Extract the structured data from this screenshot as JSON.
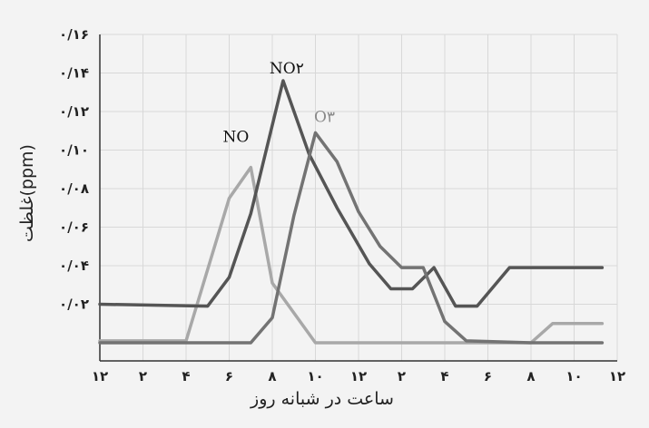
{
  "chart_data": {
    "type": "line",
    "xlabel": "ساعت در شبانه روز",
    "ylabel": "غلظت(ppm)",
    "x_tick_labels": [
      "۱۲",
      "۲",
      "۴",
      "۶",
      "۸",
      "۱۰",
      "۱۲",
      "۲",
      "۴",
      "۶",
      "۸",
      "۱۰",
      "۱۲"
    ],
    "y_tick_labels": [
      "۰/۰۲",
      "۰/۰۴",
      "۰/۰۶",
      "۰/۰۸",
      "۰/۱۰",
      "۰/۱۲",
      "۰/۱۴",
      "۰/۱۶"
    ],
    "xlim": [
      0,
      24
    ],
    "ylim": [
      0,
      0.16
    ],
    "grid": true,
    "series": [
      {
        "name": "NO",
        "color": "#a8a8a8",
        "x": [
          0,
          4,
          6,
          7,
          8,
          10,
          20,
          21,
          23.3
        ],
        "y": [
          0.001,
          0.001,
          0.075,
          0.091,
          0.031,
          0.0,
          0.0,
          0.01,
          0.01
        ]
      },
      {
        "name": "NO۲",
        "color": "#555555",
        "x": [
          0,
          5,
          6,
          7,
          8.5,
          9.7,
          11,
          12.5,
          13.5,
          14.5,
          15.5,
          16.5,
          17.5,
          19,
          20,
          23.3
        ],
        "y": [
          0.02,
          0.019,
          0.034,
          0.067,
          0.136,
          0.098,
          0.07,
          0.041,
          0.028,
          0.028,
          0.039,
          0.019,
          0.019,
          0.039,
          0.039,
          0.039
        ]
      },
      {
        "name": "O۳",
        "color": "#737373",
        "x": [
          0,
          7,
          8,
          9,
          10,
          11,
          12,
          13,
          14,
          15,
          16,
          17,
          20,
          23.3
        ],
        "y": [
          0.0,
          0.0,
          0.013,
          0.066,
          0.109,
          0.094,
          0.068,
          0.05,
          0.039,
          0.039,
          0.011,
          0.001,
          0.0,
          0.0
        ]
      }
    ],
    "annotations": [
      {
        "text": "NO",
        "series": "NO"
      },
      {
        "text": "NO۲",
        "series": "NO۲"
      },
      {
        "text": "O۳",
        "series": "O۳"
      }
    ]
  }
}
